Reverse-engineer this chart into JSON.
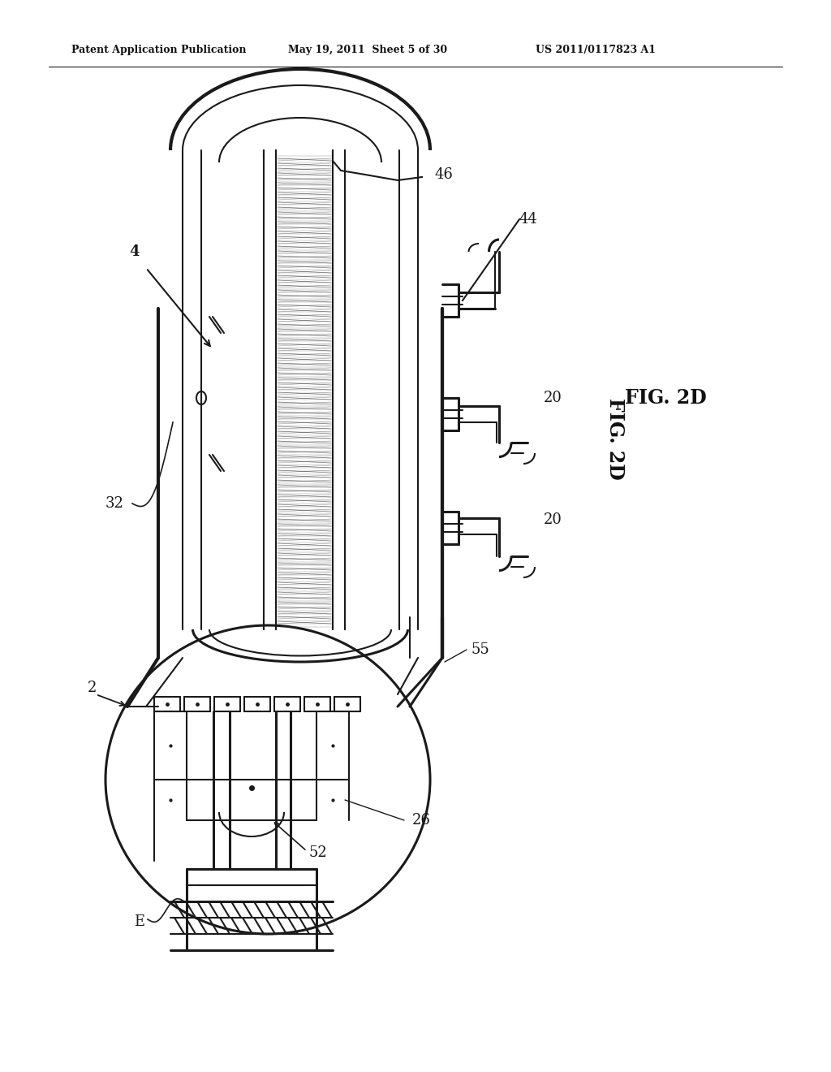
{
  "title_left": "Patent Application Publication",
  "title_center": "May 19, 2011  Sheet 5 of 30",
  "title_right": "US 2011/0117823 A1",
  "fig_label": "FIG. 2D",
  "bg_color": "#ffffff"
}
